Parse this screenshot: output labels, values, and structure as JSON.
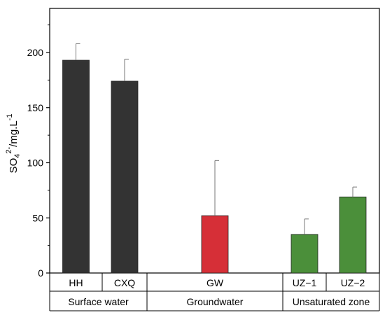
{
  "chart_data": {
    "type": "bar",
    "ylabel": {
      "main": "SO",
      "sub": "4",
      "sup": "2-",
      "rest": "/mg.L",
      "rest_sup": "-1"
    },
    "ylim": [
      0,
      240
    ],
    "yticks": [
      0,
      50,
      100,
      150,
      200
    ],
    "grid": false,
    "categories": [
      "HH",
      "CXQ",
      "GW",
      "UZ−1",
      "UZ−2"
    ],
    "values": [
      193,
      174,
      52,
      35,
      69
    ],
    "error_upper": [
      15,
      20,
      50,
      14,
      9
    ],
    "bar_colors": [
      "#333333",
      "#333333",
      "#d62f37",
      "#4b8f3a",
      "#4b8f3a"
    ],
    "groups": [
      {
        "label": "Surface water",
        "members": [
          "HH",
          "CXQ"
        ]
      },
      {
        "label": "Groundwater",
        "members": [
          "GW"
        ]
      },
      {
        "label": "Unsaturated zone",
        "members": [
          "UZ−1",
          "UZ−2"
        ]
      }
    ]
  }
}
